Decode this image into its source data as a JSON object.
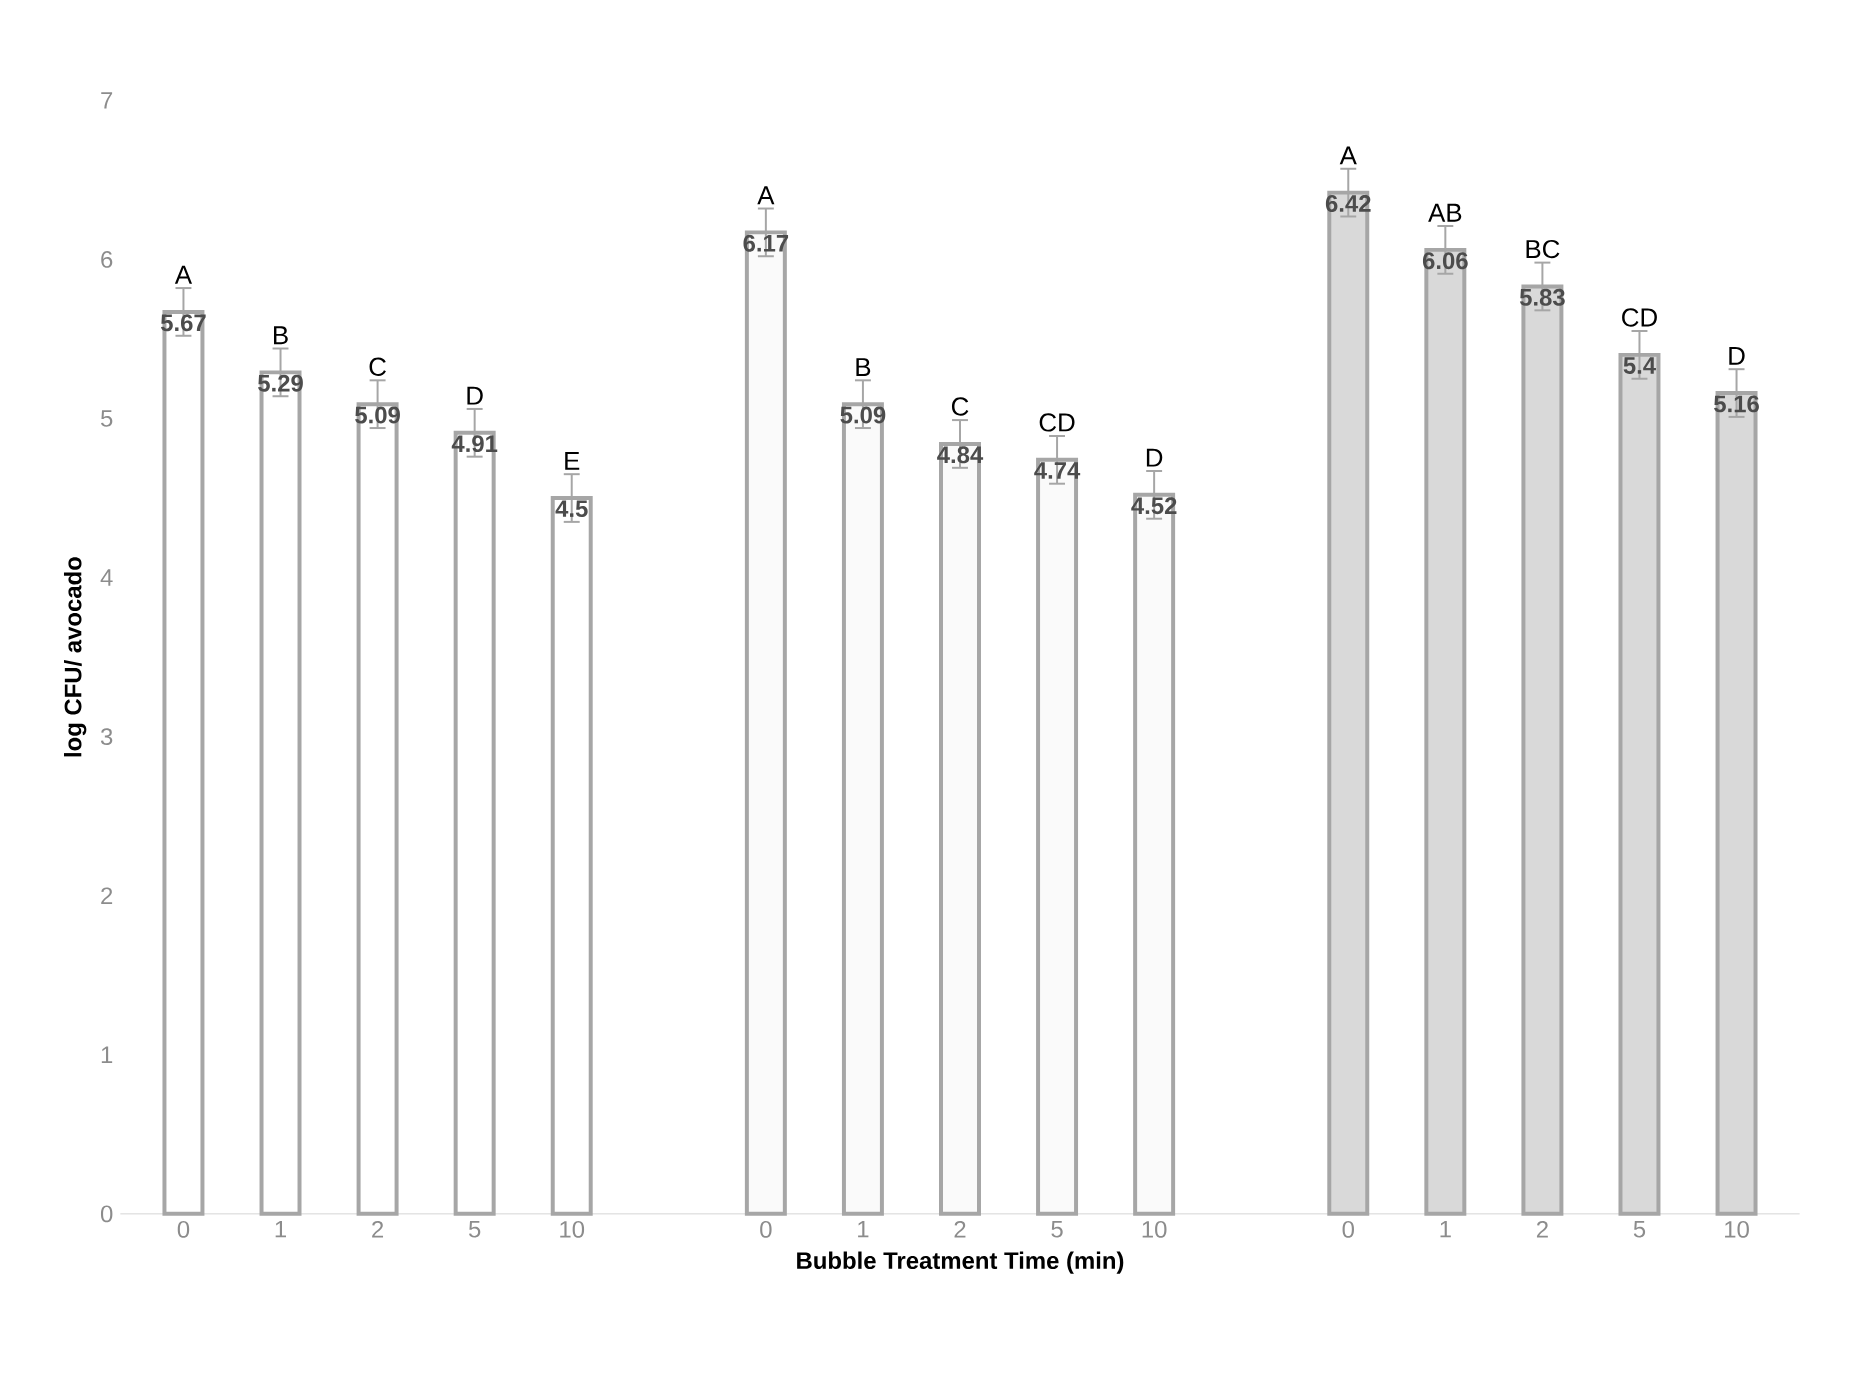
{
  "chart_data": {
    "type": "bar",
    "xlabel": "Bubble Treatment Time (min)",
    "ylabel": "log CFU/ avocado",
    "categories": [
      "0",
      "1",
      "2",
      "5",
      "10",
      null,
      "0",
      "1",
      "2",
      "5",
      "10",
      null,
      "0",
      "1",
      "2",
      "5",
      "10"
    ],
    "series": [
      {
        "color": "#ffffff",
        "values": [
          5.67,
          5.29,
          5.09,
          4.91,
          4.5,
          null,
          null,
          null,
          null,
          null,
          null,
          null,
          null,
          null,
          null,
          null,
          null
        ],
        "errors": [
          0.15,
          0.15,
          0.15,
          0.15,
          0.15,
          null,
          null,
          null,
          null,
          null,
          null,
          null,
          null,
          null,
          null,
          null,
          null
        ]
      },
      {
        "color": "#fafafa",
        "values": [
          null,
          null,
          null,
          null,
          null,
          null,
          6.17,
          5.09,
          4.84,
          4.74,
          4.52,
          null,
          null,
          null,
          null,
          null,
          null
        ],
        "errors": [
          null,
          null,
          null,
          null,
          null,
          null,
          0.15,
          0.15,
          0.15,
          0.15,
          0.15,
          null,
          null,
          null,
          null,
          null,
          null
        ]
      },
      {
        "color": "#d9d9d9",
        "values": [
          null,
          null,
          null,
          null,
          null,
          null,
          null,
          null,
          null,
          null,
          null,
          null,
          6.42,
          6.06,
          5.83,
          5.4,
          5.16
        ],
        "errors": [
          null,
          null,
          null,
          null,
          null,
          null,
          null,
          null,
          null,
          null,
          null,
          null,
          0.15,
          0.15,
          0.15,
          0.15,
          0.15
        ]
      }
    ],
    "ylim": [
      0,
      7
    ],
    "yticks": [
      0,
      1,
      2,
      3,
      4,
      5,
      6,
      7
    ],
    "grid": false,
    "data_labels": true,
    "annotations": [
      "A",
      "B",
      "C",
      "D",
      "E",
      "A",
      "B",
      "C",
      "CD",
      "D",
      "A",
      "AB",
      "BC",
      "CD",
      "D"
    ]
  }
}
